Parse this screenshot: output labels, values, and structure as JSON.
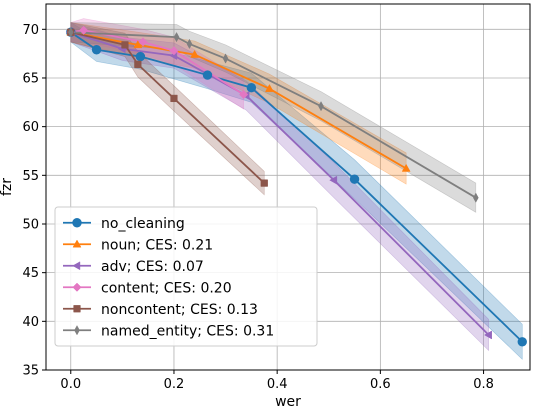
{
  "chart_data": {
    "type": "line",
    "title": "",
    "xlabel": "wer",
    "ylabel": "fzr",
    "xlim": [
      -0.048,
      0.89
    ],
    "ylim": [
      35,
      72.6
    ],
    "xticks": [
      0.0,
      0.2,
      0.4,
      0.6,
      0.8
    ],
    "xtick_labels": [
      "0.0",
      "0.2",
      "0.4",
      "0.6",
      "0.8"
    ],
    "yticks": [
      35,
      40,
      45,
      50,
      55,
      60,
      65,
      70
    ],
    "ytick_labels": [
      "35",
      "40",
      "45",
      "50",
      "55",
      "60",
      "65",
      "70"
    ],
    "grid": true,
    "legend_position": "lower-left",
    "series": [
      {
        "name": "no_cleaning",
        "color": "#1f77b4",
        "marker": "circle",
        "x": [
          0.0,
          0.05,
          0.135,
          0.265,
          0.35,
          0.55,
          0.875
        ],
        "y": [
          69.7,
          67.9,
          67.2,
          65.3,
          64.0,
          54.6,
          37.9
        ],
        "err": [
          1.0,
          1.2,
          1.3,
          1.4,
          1.5,
          2.0,
          1.8
        ]
      },
      {
        "name": "noun; CES: 0.21",
        "color": "#ff7f0e",
        "marker": "triangle-up",
        "x": [
          0.0,
          0.13,
          0.24,
          0.385,
          0.65
        ],
        "y": [
          69.7,
          68.4,
          67.4,
          63.9,
          55.7
        ],
        "err": [
          1.0,
          1.3,
          1.4,
          1.5,
          1.6
        ]
      },
      {
        "name": "adv; CES: 0.07",
        "color": "#9467bd",
        "marker": "triangle-left",
        "x": [
          0.0,
          0.1,
          0.2,
          0.34,
          0.51,
          0.81
        ],
        "y": [
          69.7,
          68.0,
          67.3,
          63.2,
          54.5,
          38.6
        ],
        "err": [
          1.0,
          1.2,
          1.3,
          1.5,
          1.8,
          1.6
        ]
      },
      {
        "name": "content; CES: 0.20",
        "color": "#e377c2",
        "marker": "diamond",
        "x": [
          0.0,
          0.025,
          0.14,
          0.2,
          0.335
        ],
        "y": [
          69.7,
          69.9,
          68.7,
          67.8,
          63.3
        ],
        "err": [
          1.0,
          1.2,
          1.3,
          1.4,
          1.5
        ]
      },
      {
        "name": "noncontent; CES: 0.13",
        "color": "#8c564b",
        "marker": "square",
        "x": [
          0.0,
          0.105,
          0.13,
          0.2,
          0.375
        ],
        "y": [
          69.7,
          68.4,
          66.4,
          62.9,
          54.2
        ],
        "err": [
          1.0,
          1.2,
          1.3,
          1.3,
          1.2
        ]
      },
      {
        "name": "named_entity; CES: 0.31",
        "color": "#7f7f7f",
        "marker": "thin-diamond",
        "x": [
          0.0,
          0.205,
          0.23,
          0.3,
          0.485,
          0.785
        ],
        "y": [
          69.7,
          69.2,
          68.5,
          67.0,
          62.1,
          52.7
        ],
        "err": [
          1.0,
          1.3,
          1.3,
          1.4,
          1.5,
          1.5
        ]
      }
    ]
  }
}
